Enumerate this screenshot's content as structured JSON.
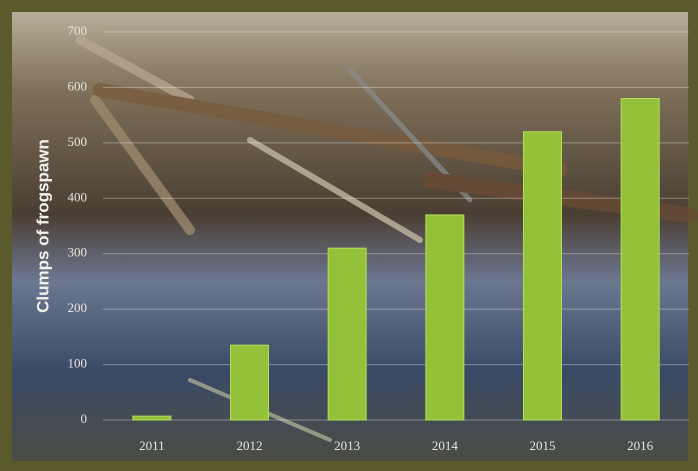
{
  "chart_data": {
    "type": "bar",
    "y_label": "Clumps of frogspawn",
    "categories": [
      "2011",
      "2012",
      "2013",
      "2014",
      "2015",
      "2016"
    ],
    "values": [
      7,
      135,
      310,
      370,
      520,
      580
    ],
    "color": "#93c23a",
    "ylim": [
      0,
      700
    ],
    "yticks": [
      0,
      100,
      200,
      300,
      400,
      500,
      600,
      700
    ],
    "grid": true
  }
}
